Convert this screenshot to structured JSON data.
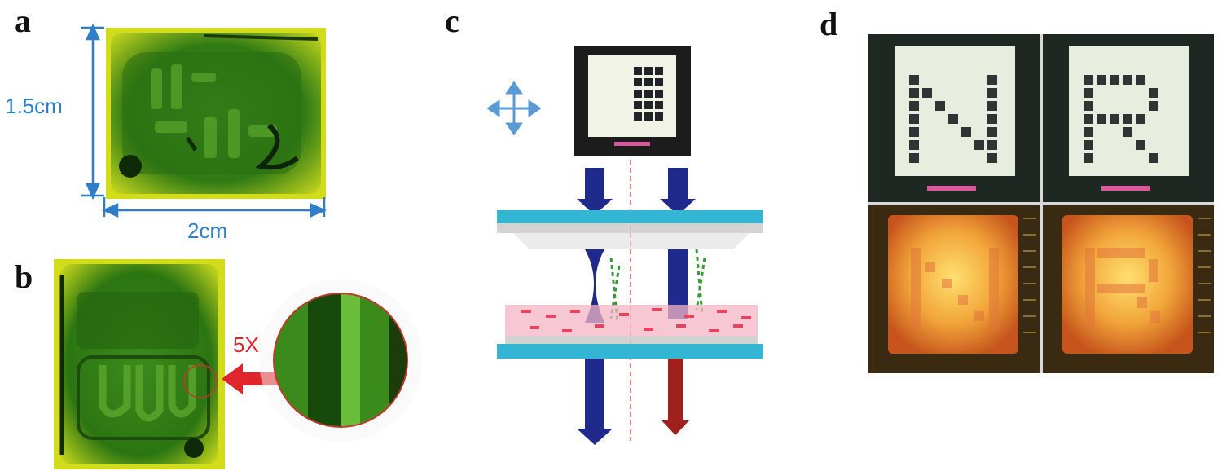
{
  "panels": {
    "a": {
      "letter": "a",
      "height_label": "1.5cm",
      "width_label": "2cm"
    },
    "b": {
      "letter": "b",
      "magnification_label": "5X"
    },
    "c": {
      "letter": "c"
    },
    "d": {
      "letter": "d"
    }
  },
  "colors": {
    "dimension_blue": "#2f7fc8",
    "magnification_red": "#e0262b",
    "glass_cyan": "#33b6d3",
    "arrow_navy": "#1f2a8c",
    "arrow_darkred": "#a0201e"
  }
}
